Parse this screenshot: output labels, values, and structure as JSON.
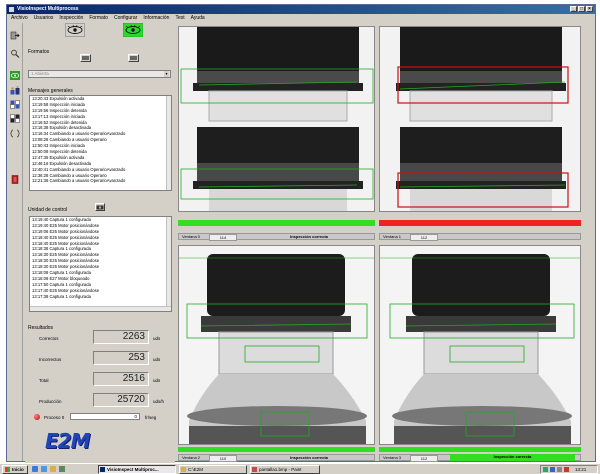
{
  "window": {
    "title": "VisioInspect Multiprocess",
    "controls": [
      "_",
      "□",
      "×"
    ]
  },
  "menu": [
    "Archivo",
    "Usuarios",
    "Inspección",
    "Formato",
    "Configurar",
    "Información",
    "Test",
    "Ayuda"
  ],
  "formatos": {
    "label": "Formatos",
    "dropdown_value": "1 Abierta"
  },
  "mensajes": {
    "label": "Mensajes generales",
    "items": [
      "13:20:43  Expulsión activada",
      "13:19:58  Inspección iniciada",
      "13:19:56  Inspección detenida",
      "13:17:13  Inspección iniciada",
      "13:16:52  Inspección detenida",
      "13:16:38  Expulsión desactivada",
      "13:16:34  Cambiando a usuario OperarioAvanzado",
      "13:08:28  Cambiando a usuario Operario",
      "12:50:43  Inspección iniciada",
      "12:50:08  Inspección detenida",
      "12:47:35  Expulsión activada",
      "12:46:16  Expulsión desactivada",
      "12:40:41  Cambiando a usuario OperarioAvanzado",
      "12:36:28  Cambiando a usuario Operario",
      "12:21:36  Cambiando a usuario OperarioAvanzado"
    ]
  },
  "unidad": {
    "label": "Unidad de control",
    "items": [
      "13:19:40  Captura 1 configurada",
      "13:19:40  E25  Motor posicionándose",
      "13:19:06  E25  Motor posicionándose",
      "13:18:40  E25  Motor posicionándose",
      "13:18:40  E25  Motor posicionándose",
      "13:18:38  Captura 1 configurada",
      "13:18:30  E25  Motor posicionándose",
      "13:18:30  E25  Motor posicionándose",
      "13:18:30  E25  Motor posicionándose",
      "13:18:08  Captura 1 configurada",
      "13:18:08  E27  Motor bloqueado",
      "13:17:50  Captura 1 configurada",
      "13:17:40  E25  Motor posicionándose",
      "13:17:38  Captura 1 configurada"
    ]
  },
  "resultados": {
    "label": "Resultados",
    "rows": [
      {
        "label": "Correctos",
        "value": "2263",
        "unit": "uds"
      },
      {
        "label": "Incorrectos",
        "value": "253",
        "unit": "uds"
      },
      {
        "label": "Total",
        "value": "2516",
        "unit": "uds"
      },
      {
        "label": "Producción",
        "value": "25720",
        "unit": "uds/h"
      }
    ],
    "proceso_label": "Proceso 0",
    "proceso_value": "0",
    "proceso_unit": "fr/seg"
  },
  "logo": "E2M",
  "cameras": [
    {
      "name": "Ventana 0",
      "value": "114",
      "status": "Inspección correcta",
      "ok": true
    },
    {
      "name": "Ventana 1",
      "value": "112",
      "status": "",
      "ok": false
    },
    {
      "name": "Ventana 2",
      "value": "110",
      "status": "Inspección correcta",
      "ok": true
    },
    {
      "name": "Ventana 3",
      "value": "112",
      "status": "Inspección correcta",
      "ok": true
    }
  ],
  "taskbar": {
    "start": "Inicio",
    "tasks": [
      "VisioInspect Multiproc...",
      "C:\\E2M",
      "pantalla1.bmp - Paint"
    ],
    "clock": "13:21"
  },
  "colors": {
    "ok": "#33dd22",
    "fail": "#ee2222",
    "roi_ok": "#22aa22",
    "roi_fail": "#cc1111"
  }
}
